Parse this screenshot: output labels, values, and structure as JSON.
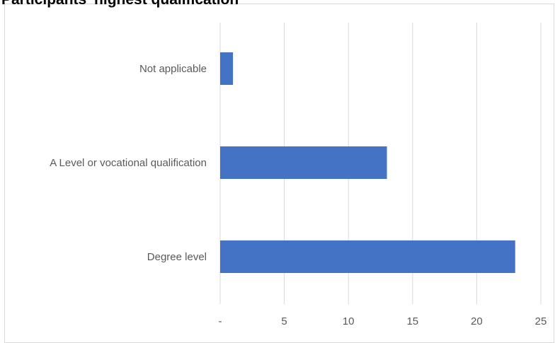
{
  "chart_data": {
    "type": "bar",
    "orientation": "horizontal",
    "title": "Participants' highest qualification",
    "categories": [
      "Not applicable",
      "A Level or vocational qualification",
      "Degree level"
    ],
    "values": [
      1,
      13,
      23
    ],
    "xlim": [
      0,
      25
    ],
    "x_ticks": [
      0,
      5,
      10,
      15,
      20,
      25
    ],
    "x_tick_labels": [
      "-",
      "5",
      "10",
      "15",
      "20",
      "25"
    ],
    "grid": "vertical",
    "legend": "none",
    "bar_color": "#4472c4",
    "grid_color": "#d9d9d9"
  }
}
